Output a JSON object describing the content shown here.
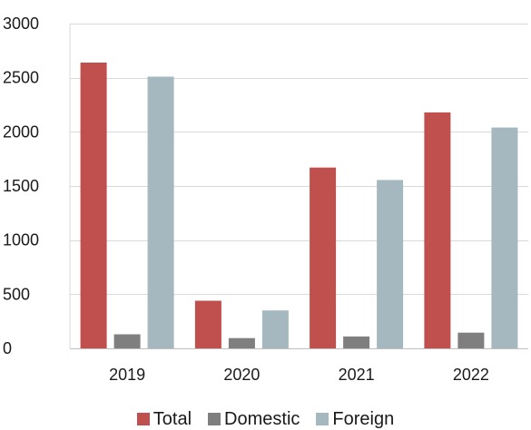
{
  "chart_data": {
    "type": "bar",
    "title": "",
    "xlabel": "",
    "ylabel": "",
    "categories": [
      "2019",
      "2020",
      "2021",
      "2022"
    ],
    "series": [
      {
        "name": "Total",
        "color": "#c0504d",
        "values": [
          2640,
          440,
          1670,
          2180
        ]
      },
      {
        "name": "Domestic",
        "color": "#7f7f7f",
        "values": [
          130,
          95,
          110,
          145
        ]
      },
      {
        "name": "Foreign",
        "color": "#a5b8c0",
        "values": [
          2510,
          350,
          1555,
          2040
        ]
      }
    ],
    "ylim": [
      0,
      3000
    ],
    "yticks": [
      0,
      500,
      1000,
      1500,
      2000,
      2500,
      3000
    ],
    "grid": true,
    "legend_position": "bottom"
  }
}
